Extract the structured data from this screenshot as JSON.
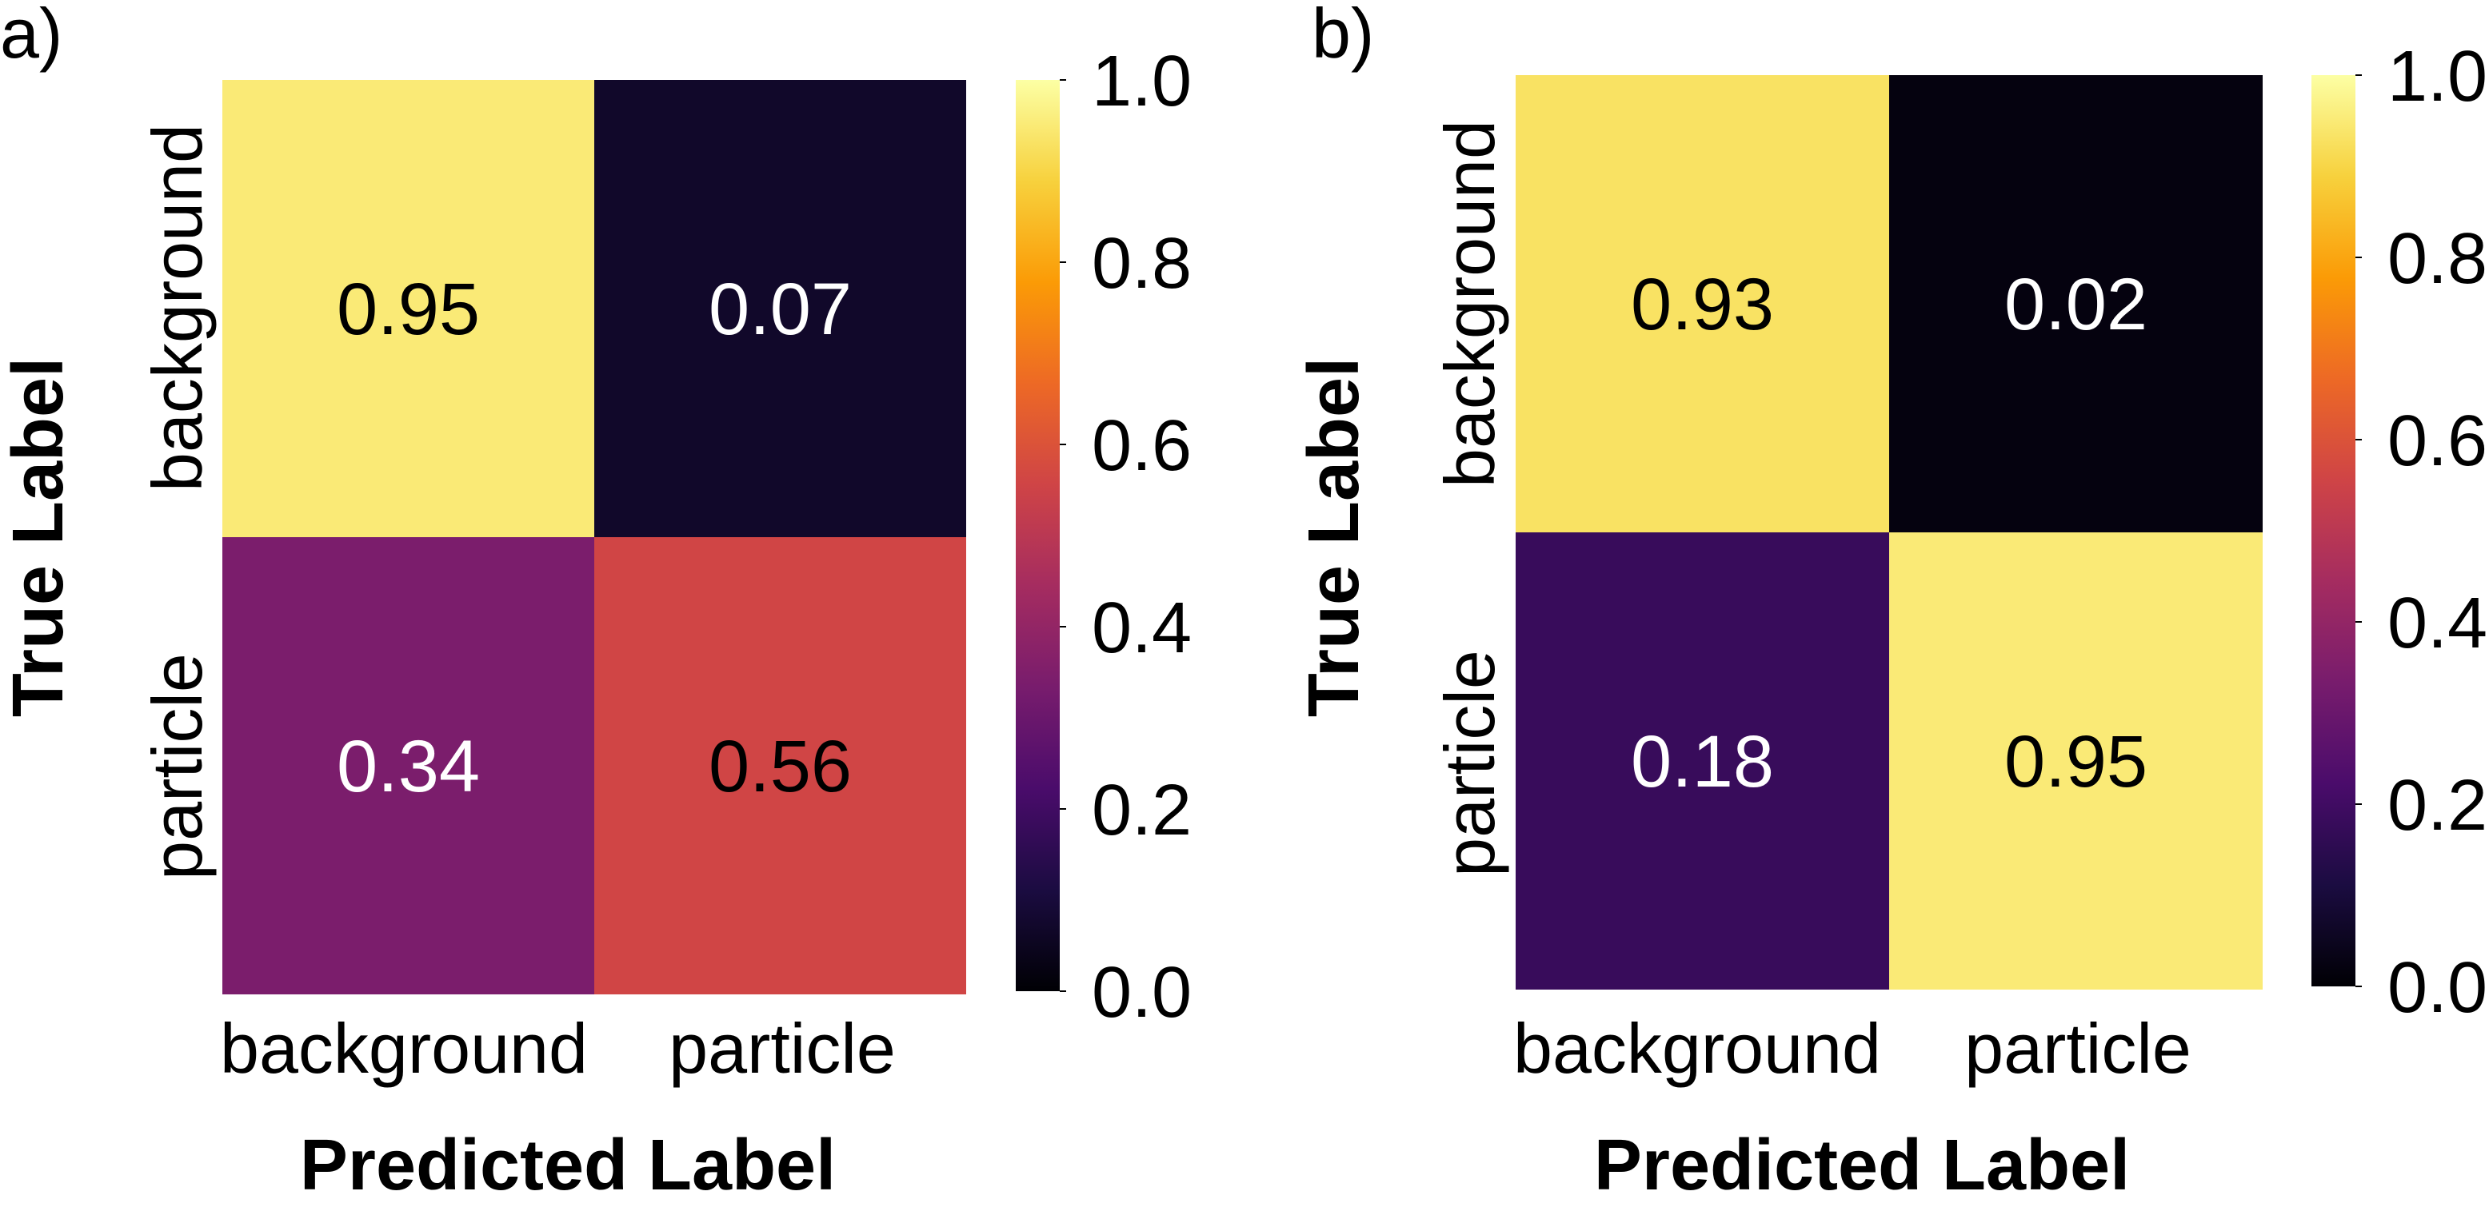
{
  "colormap": {
    "name": "inferno",
    "stops": [
      "#000004",
      "#1b0c41",
      "#4a0c6b",
      "#781c6d",
      "#a52c60",
      "#cf4446",
      "#ed6925",
      "#fb9b06",
      "#f7d13d",
      "#fcffa4"
    ]
  },
  "chart_data": [
    {
      "type": "heatmap",
      "panel_label": "a)",
      "xlabel": "Predicted Label",
      "ylabel": "True Label",
      "x_categories": [
        "background",
        "particle"
      ],
      "y_categories": [
        "background",
        "particle"
      ],
      "values": [
        [
          0.95,
          0.07
        ],
        [
          0.34,
          0.56
        ]
      ],
      "value_labels": [
        [
          "0.95",
          "0.07"
        ],
        [
          "0.34",
          "0.56"
        ]
      ],
      "colorbar": {
        "range": [
          0.0,
          1.0
        ],
        "ticks": [
          "0.0",
          "0.2",
          "0.4",
          "0.6",
          "0.8",
          "1.0"
        ]
      }
    },
    {
      "type": "heatmap",
      "panel_label": "b)",
      "xlabel": "Predicted Label",
      "ylabel": "True Label",
      "x_categories": [
        "background",
        "particle"
      ],
      "y_categories": [
        "background",
        "particle"
      ],
      "values": [
        [
          0.93,
          0.02
        ],
        [
          0.18,
          0.95
        ]
      ],
      "value_labels": [
        [
          "0.93",
          "0.02"
        ],
        [
          "0.18",
          "0.95"
        ]
      ],
      "colorbar": {
        "range": [
          0.0,
          1.0
        ],
        "ticks": [
          "0.0",
          "0.2",
          "0.4",
          "0.6",
          "0.8",
          "1.0"
        ]
      }
    }
  ]
}
